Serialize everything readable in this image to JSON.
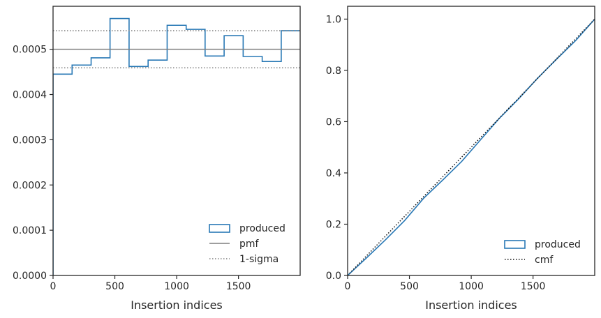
{
  "colors": {
    "produced": "#2878b5",
    "reference": "#7f7f7f",
    "cmf": "#111111",
    "axis": "#262626"
  },
  "chart_data": [
    {
      "type": "line",
      "xlabel": "Insertion indices",
      "ylabel": "",
      "xlim": [
        0,
        1999
      ],
      "ylim": [
        0,
        0.000595
      ],
      "xticks": [
        0,
        500,
        1000,
        1500
      ],
      "xtick_labels": [
        "0",
        "500",
        "1000",
        "1500"
      ],
      "yticks": [
        0,
        0.0001,
        0.0002,
        0.0003,
        0.0004,
        0.0005
      ],
      "ytick_labels": [
        "0.0000",
        "0.0001",
        "0.0002",
        "0.0003",
        "0.0004",
        "0.0005"
      ],
      "grid": false,
      "legend_position": "lower-right",
      "legend": [
        {
          "label": "produced",
          "style": "step-box"
        },
        {
          "label": "pmf",
          "style": "solid"
        },
        {
          "label": "1-sigma",
          "style": "dotted"
        }
      ],
      "series": [
        {
          "name": "produced",
          "kind": "step-histogram",
          "bin_edges": [
            0,
            154,
            308,
            461,
            615,
            769,
            923,
            1077,
            1230,
            1384,
            1538,
            1692,
            1846,
            1999
          ],
          "values": [
            0.000445,
            0.000465,
            0.000481,
            0.000568,
            0.000462,
            0.000476,
            0.000553,
            0.000544,
            0.000485,
            0.00053,
            0.000484,
            0.000473,
            0.000541
          ]
        },
        {
          "name": "pmf",
          "kind": "hline",
          "value": 0.0005
        },
        {
          "name": "1-sigma",
          "kind": "hline-pair",
          "values": [
            0.000459,
            0.000541
          ]
        }
      ]
    },
    {
      "type": "line",
      "xlabel": "Insertion indices",
      "ylabel": "",
      "xlim": [
        0,
        1999
      ],
      "ylim": [
        0,
        1.05
      ],
      "xticks": [
        0,
        500,
        1000,
        1500
      ],
      "xtick_labels": [
        "0",
        "500",
        "1000",
        "1500"
      ],
      "yticks": [
        0,
        0.2,
        0.4,
        0.6,
        0.8,
        1.0
      ],
      "ytick_labels": [
        "0.0",
        "0.2",
        "0.4",
        "0.6",
        "0.8",
        "1.0"
      ],
      "grid": false,
      "legend_position": "lower-right",
      "legend": [
        {
          "label": "produced",
          "style": "step-box"
        },
        {
          "label": "cmf",
          "style": "dotted"
        }
      ],
      "series": [
        {
          "name": "produced",
          "kind": "cumulative",
          "x": [
            0,
            154,
            308,
            461,
            615,
            769,
            923,
            1077,
            1230,
            1384,
            1538,
            1692,
            1846,
            1999
          ],
          "values": [
            0,
            0.069,
            0.14,
            0.214,
            0.301,
            0.372,
            0.445,
            0.53,
            0.614,
            0.689,
            0.77,
            0.844,
            0.917,
            1.0
          ]
        },
        {
          "name": "cmf",
          "kind": "reference-line",
          "x": [
            0,
            1999
          ],
          "values": [
            0,
            1.0
          ]
        }
      ]
    }
  ]
}
